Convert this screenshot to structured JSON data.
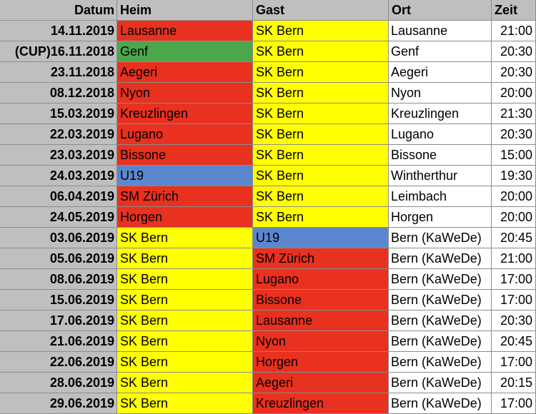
{
  "headers": {
    "datum": "Datum",
    "heim": "Heim",
    "gast": "Gast",
    "ort": "Ort",
    "zeit": "Zeit"
  },
  "colors": {
    "red": "#e8311f",
    "yellow": "#ffff00",
    "green": "#4ca64c",
    "blue": "#5b87cf",
    "date_column": "#bfbfbf"
  },
  "rows": [
    {
      "datum": "14.11.2019",
      "heim": "Lausanne",
      "heim_color": "red",
      "gast": "SK Bern",
      "gast_color": "yellow",
      "ort": "Lausanne",
      "zeit": "21:00"
    },
    {
      "datum": "(CUP)16.11.2018",
      "heim": "Genf",
      "heim_color": "green",
      "gast": "SK Bern",
      "gast_color": "yellow",
      "ort": "Genf",
      "zeit": "20:30"
    },
    {
      "datum": "23.11.2018",
      "heim": "Aegeri",
      "heim_color": "red",
      "gast": "SK Bern",
      "gast_color": "yellow",
      "ort": "Aegeri",
      "zeit": "20:30"
    },
    {
      "datum": "08.12.2018",
      "heim": "Nyon",
      "heim_color": "red",
      "gast": "SK Bern",
      "gast_color": "yellow",
      "ort": "Nyon",
      "zeit": "20:00"
    },
    {
      "datum": "15.03.2019",
      "heim": "Kreuzlingen",
      "heim_color": "red",
      "gast": "SK Bern",
      "gast_color": "yellow",
      "ort": "Kreuzlingen",
      "zeit": "21:30"
    },
    {
      "datum": "22.03.2019",
      "heim": "Lugano",
      "heim_color": "red",
      "gast": "SK Bern",
      "gast_color": "yellow",
      "ort": "Lugano",
      "zeit": "20:30"
    },
    {
      "datum": "23.03.2019",
      "heim": "Bissone",
      "heim_color": "red",
      "gast": "SK Bern",
      "gast_color": "yellow",
      "ort": "Bissone",
      "zeit": "15:00"
    },
    {
      "datum": "24.03.2019",
      "heim": "U19",
      "heim_color": "blue",
      "gast": "SK Bern",
      "gast_color": "yellow",
      "ort": "Wintherthur",
      "zeit": "19:30"
    },
    {
      "datum": "06.04.2019",
      "heim": "SM Zürich",
      "heim_color": "red",
      "gast": "SK Bern",
      "gast_color": "yellow",
      "ort": "Leimbach",
      "zeit": "20:00"
    },
    {
      "datum": "24.05.2019",
      "heim": "Horgen",
      "heim_color": "red",
      "gast": "SK Bern",
      "gast_color": "yellow",
      "ort": "Horgen",
      "zeit": "20:00"
    },
    {
      "datum": "03.06.2019",
      "heim": "SK Bern",
      "heim_color": "yellow",
      "gast": "U19",
      "gast_color": "blue",
      "ort": "Bern (KaWeDe)",
      "zeit": "20:45"
    },
    {
      "datum": "05.06.2019",
      "heim": "SK Bern",
      "heim_color": "yellow",
      "gast": "SM Zürich",
      "gast_color": "red",
      "ort": "Bern (KaWeDe)",
      "zeit": "21:00"
    },
    {
      "datum": "08.06.2019",
      "heim": "SK Bern",
      "heim_color": "yellow",
      "gast": "Lugano",
      "gast_color": "red",
      "ort": "Bern (KaWeDe)",
      "zeit": "17:00"
    },
    {
      "datum": "15.06.2019",
      "heim": "SK Bern",
      "heim_color": "yellow",
      "gast": "Bissone",
      "gast_color": "red",
      "ort": "Bern (KaWeDe)",
      "zeit": "17:00"
    },
    {
      "datum": "17.06.2019",
      "heim": "SK Bern",
      "heim_color": "yellow",
      "gast": "Lausanne",
      "gast_color": "red",
      "ort": "Bern (KaWeDe)",
      "zeit": "20:30"
    },
    {
      "datum": "21.06.2019",
      "heim": "SK Bern",
      "heim_color": "yellow",
      "gast": "Nyon",
      "gast_color": "red",
      "ort": "Bern (KaWeDe)",
      "zeit": "20:45"
    },
    {
      "datum": "22.06.2019",
      "heim": "SK Bern",
      "heim_color": "yellow",
      "gast": "Horgen",
      "gast_color": "red",
      "ort": "Bern (KaWeDe)",
      "zeit": "17:00"
    },
    {
      "datum": "28.06.2019",
      "heim": "SK Bern",
      "heim_color": "yellow",
      "gast": "Aegeri",
      "gast_color": "red",
      "ort": "Bern (KaWeDe)",
      "zeit": "20:15"
    },
    {
      "datum": "29.06.2019",
      "heim": "SK Bern",
      "heim_color": "yellow",
      "gast": "Kreuzlingen",
      "gast_color": "red",
      "ort": "Bern (KaWeDe)",
      "zeit": "17:00"
    }
  ]
}
